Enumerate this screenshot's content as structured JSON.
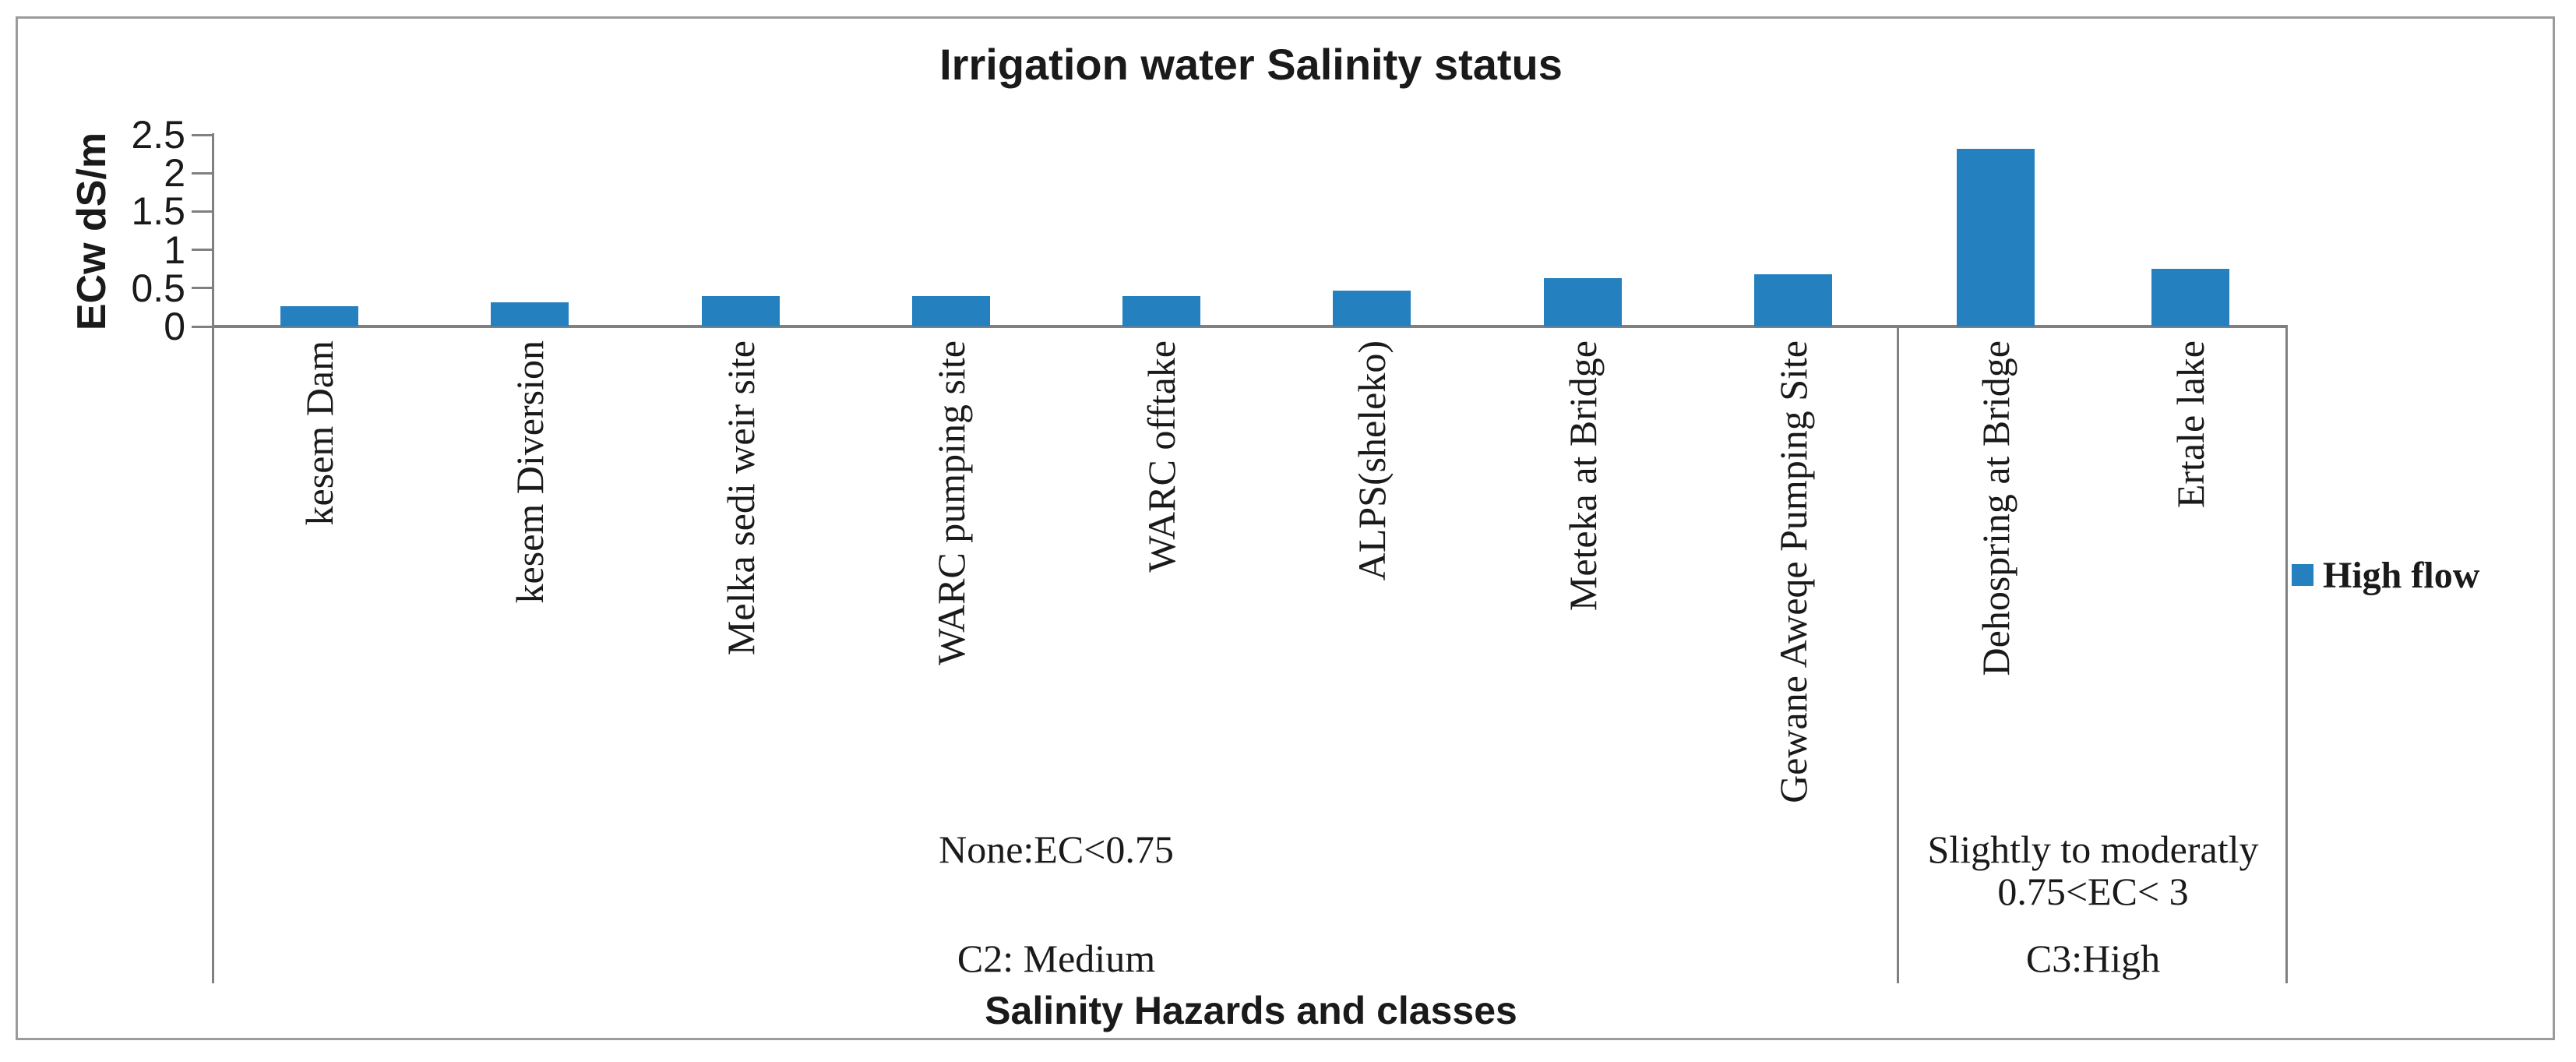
{
  "chart_data": {
    "type": "bar",
    "title": "Irrigation water Salinity status",
    "xlabel": "Salinity Hazards and classes",
    "ylabel": "ECw  dS/m",
    "ylim": [
      0,
      2.5
    ],
    "yticks": [
      "0",
      "0.5",
      "1",
      "1.5",
      "2",
      "2.5"
    ],
    "ytick_values": [
      0,
      0.5,
      1,
      1.5,
      2,
      2.5
    ],
    "grid": false,
    "legend_position": "right",
    "categories": [
      "kesem Dam",
      "kesem Diversion",
      "Melka sedi weir site",
      "WARC pumping site",
      "WARC offtake",
      "ALPS(sheleko)",
      "Meteka at Bridge",
      "Gewane Aweqe Pumping Site",
      "Dehospring at Bridge",
      "Ertale lake"
    ],
    "series": [
      {
        "name": "High flow",
        "color": "#2580BF",
        "values": [
          0.26,
          0.31,
          0.4,
          0.4,
          0.4,
          0.47,
          0.63,
          0.68,
          2.32,
          0.75
        ]
      }
    ],
    "groups": [
      {
        "annotation_lines": [
          "None:EC<0.75"
        ],
        "class_label": "C2: Medium",
        "category_count": 8
      },
      {
        "annotation_lines": [
          "Slightly to moderatly",
          "0.75<EC< 3"
        ],
        "class_label": "C3:High",
        "category_count": 2
      }
    ]
  },
  "colors": {
    "bar": "#2580BF",
    "axis": "#808080",
    "border": "#9b9b9b",
    "text": "#1a1a1a"
  }
}
